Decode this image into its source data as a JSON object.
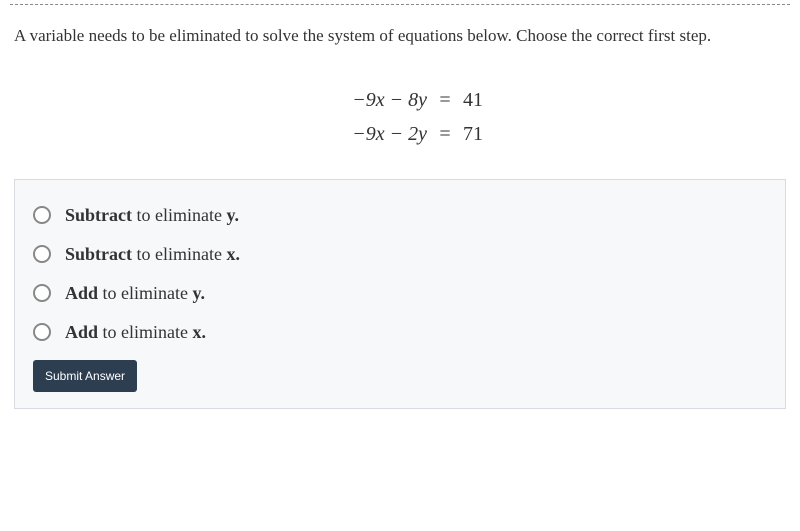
{
  "question": {
    "prompt": "A variable needs to be eliminated to solve the system of equations below. Choose the correct first step.",
    "text_color": "#333333",
    "fontsize": 17
  },
  "equations": {
    "rows": [
      {
        "lhs_html": "−9<span class=\"mi\">x</span> − 8<span class=\"mi\">y</span>",
        "eq": "=",
        "rhs": "41"
      },
      {
        "lhs_html": "−9<span class=\"mi\">x</span> − 2<span class=\"mi\">y</span>",
        "eq": "=",
        "rhs": "71"
      }
    ],
    "fontsize": 20,
    "color": "#333333"
  },
  "options": {
    "background_color": "#f7f8fa",
    "border_color": "#d8dce0",
    "radio_border": "#888888",
    "fontsize": 18,
    "items": [
      {
        "bold": "Subtract",
        "rest": " to eliminate ",
        "var": "y",
        "suffix": "."
      },
      {
        "bold": "Subtract",
        "rest": " to eliminate ",
        "var": "x",
        "suffix": "."
      },
      {
        "bold": "Add",
        "rest": " to eliminate ",
        "var": "y",
        "suffix": "."
      },
      {
        "bold": "Add",
        "rest": " to eliminate ",
        "var": "x",
        "suffix": "."
      }
    ]
  },
  "submit": {
    "label": "Submit Answer",
    "background": "#2c3e50",
    "color": "#ffffff"
  }
}
